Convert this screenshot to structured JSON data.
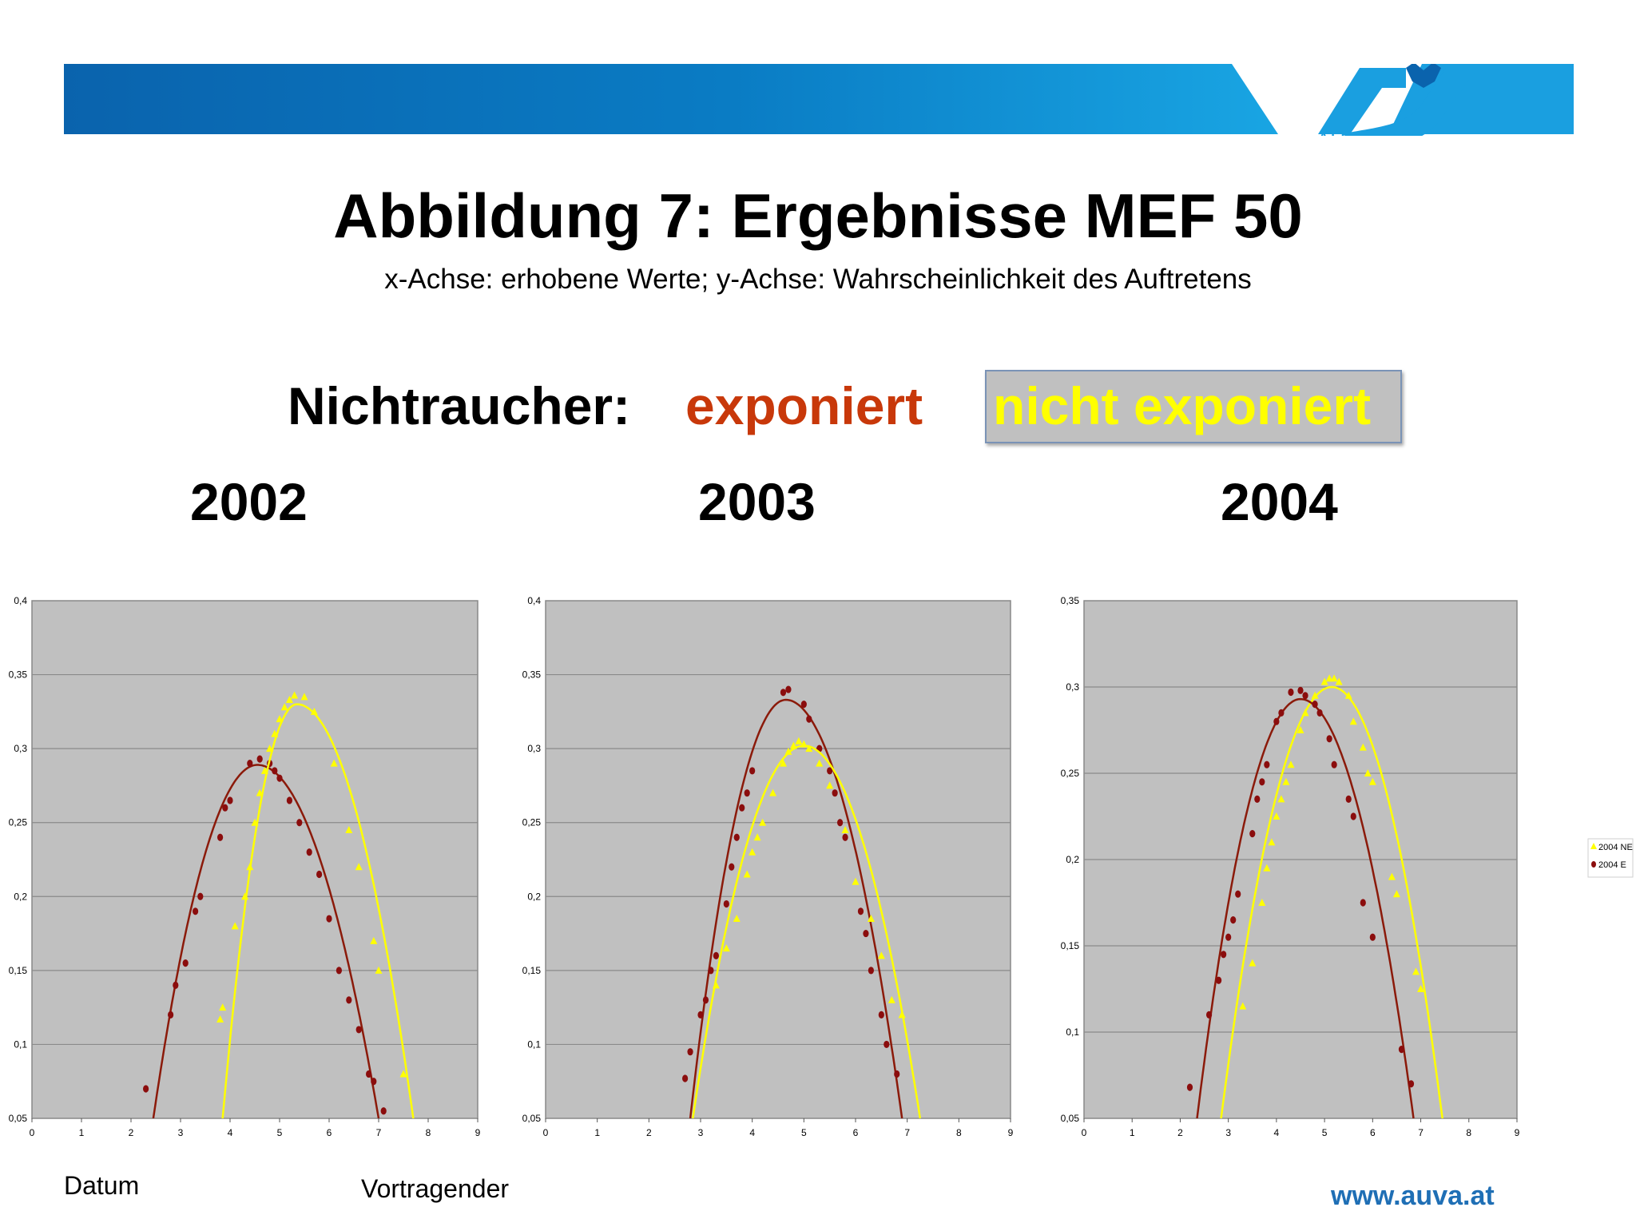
{
  "header": {
    "logo_text": "AUVA",
    "brand_color": "#0a72c0",
    "brand_color_light": "#1aa6e6"
  },
  "slide": {
    "title": "Abbildung 7: Ergebnisse MEF 50",
    "subtitle": "x-Achse: erhobene Werte; y-Achse: Wahrscheinlichkeit des Auftretens",
    "legend": {
      "label": "Nichtraucher:",
      "exposed": "exponiert",
      "not_exposed": "nicht exponiert",
      "exposed_color": "#c8380a",
      "not_exposed_color": "#ffff00"
    },
    "years": [
      "2002",
      "2003",
      "2004"
    ]
  },
  "footer": {
    "date": "Datum",
    "speaker": "Vortragender",
    "url": "www.auva.at"
  },
  "chart_data": [
    {
      "type": "scatter",
      "title": "",
      "xlim": [
        0,
        9
      ],
      "ylim": [
        0.05,
        0.4
      ],
      "x_ticks": [
        "0",
        "1",
        "2",
        "3",
        "4",
        "5",
        "6",
        "7",
        "8",
        "9"
      ],
      "y_ticks": [
        "0,05",
        "0,1",
        "0,15",
        "0,2",
        "0,25",
        "0,3",
        "0,35",
        "0,4"
      ],
      "grid": true,
      "background": "#c0c0c0",
      "series": [
        {
          "role": "exposed",
          "color": "#8b0d0d",
          "marker": "circle",
          "curve": {
            "peak_x": 4.55,
            "peak_y": 0.289,
            "x_start": 2.45,
            "x_end": 7.0
          },
          "points": [
            [
              2.3,
              0.07
            ],
            [
              2.8,
              0.12
            ],
            [
              2.9,
              0.14
            ],
            [
              3.1,
              0.155
            ],
            [
              3.3,
              0.19
            ],
            [
              3.4,
              0.2
            ],
            [
              3.8,
              0.24
            ],
            [
              3.9,
              0.26
            ],
            [
              4.0,
              0.265
            ],
            [
              4.4,
              0.29
            ],
            [
              4.6,
              0.293
            ],
            [
              4.8,
              0.29
            ],
            [
              4.9,
              0.285
            ],
            [
              5.0,
              0.28
            ],
            [
              5.2,
              0.265
            ],
            [
              5.4,
              0.25
            ],
            [
              5.6,
              0.23
            ],
            [
              5.8,
              0.215
            ],
            [
              6.0,
              0.185
            ],
            [
              6.2,
              0.15
            ],
            [
              6.4,
              0.13
            ],
            [
              6.6,
              0.11
            ],
            [
              6.8,
              0.08
            ],
            [
              6.9,
              0.075
            ],
            [
              7.1,
              0.055
            ]
          ]
        },
        {
          "role": "not_exposed",
          "color": "#ffff00",
          "marker": "triangle",
          "curve": {
            "peak_x": 5.35,
            "peak_y": 0.33,
            "x_start": 3.85,
            "x_end": 7.7
          },
          "points": [
            [
              3.8,
              0.117
            ],
            [
              3.85,
              0.125
            ],
            [
              4.1,
              0.18
            ],
            [
              4.3,
              0.2
            ],
            [
              4.4,
              0.22
            ],
            [
              4.5,
              0.25
            ],
            [
              4.6,
              0.27
            ],
            [
              4.7,
              0.285
            ],
            [
              4.8,
              0.3
            ],
            [
              4.9,
              0.31
            ],
            [
              5.0,
              0.32
            ],
            [
              5.1,
              0.328
            ],
            [
              5.2,
              0.333
            ],
            [
              5.3,
              0.336
            ],
            [
              5.5,
              0.335
            ],
            [
              5.7,
              0.325
            ],
            [
              6.1,
              0.29
            ],
            [
              6.4,
              0.245
            ],
            [
              6.6,
              0.22
            ],
            [
              6.9,
              0.17
            ],
            [
              7.0,
              0.15
            ],
            [
              7.5,
              0.08
            ]
          ]
        }
      ]
    },
    {
      "type": "scatter",
      "title": "",
      "xlim": [
        0,
        9
      ],
      "ylim": [
        0.05,
        0.4
      ],
      "x_ticks": [
        "0",
        "1",
        "2",
        "3",
        "4",
        "5",
        "6",
        "7",
        "8",
        "9"
      ],
      "y_ticks": [
        "0,05",
        "0,1",
        "0,15",
        "0,2",
        "0,25",
        "0,3",
        "0,35",
        "0,4"
      ],
      "grid": true,
      "background": "#c0c0c0",
      "series": [
        {
          "role": "exposed",
          "color": "#8b0d0d",
          "marker": "circle",
          "curve": {
            "peak_x": 4.65,
            "peak_y": 0.333,
            "x_start": 2.8,
            "x_end": 6.9
          },
          "points": [
            [
              2.7,
              0.077
            ],
            [
              2.8,
              0.095
            ],
            [
              3.0,
              0.12
            ],
            [
              3.1,
              0.13
            ],
            [
              3.2,
              0.15
            ],
            [
              3.3,
              0.16
            ],
            [
              3.5,
              0.195
            ],
            [
              3.6,
              0.22
            ],
            [
              3.7,
              0.24
            ],
            [
              3.8,
              0.26
            ],
            [
              3.9,
              0.27
            ],
            [
              4.0,
              0.285
            ],
            [
              4.6,
              0.338
            ],
            [
              4.7,
              0.34
            ],
            [
              5.0,
              0.33
            ],
            [
              5.1,
              0.32
            ],
            [
              5.3,
              0.3
            ],
            [
              5.5,
              0.285
            ],
            [
              5.6,
              0.27
            ],
            [
              5.7,
              0.25
            ],
            [
              5.8,
              0.24
            ],
            [
              6.1,
              0.19
            ],
            [
              6.2,
              0.175
            ],
            [
              6.3,
              0.15
            ],
            [
              6.5,
              0.12
            ],
            [
              6.6,
              0.1
            ],
            [
              6.8,
              0.08
            ]
          ]
        },
        {
          "role": "not_exposed",
          "color": "#ffff00",
          "marker": "triangle",
          "curve": {
            "peak_x": 5.0,
            "peak_y": 0.302,
            "x_start": 2.85,
            "x_end": 7.25
          },
          "points": [
            [
              3.3,
              0.14
            ],
            [
              3.5,
              0.165
            ],
            [
              3.7,
              0.185
            ],
            [
              3.9,
              0.215
            ],
            [
              4.0,
              0.23
            ],
            [
              4.1,
              0.24
            ],
            [
              4.2,
              0.25
            ],
            [
              4.4,
              0.27
            ],
            [
              4.6,
              0.29
            ],
            [
              4.7,
              0.298
            ],
            [
              4.8,
              0.302
            ],
            [
              4.9,
              0.305
            ],
            [
              5.0,
              0.303
            ],
            [
              5.1,
              0.3
            ],
            [
              5.3,
              0.29
            ],
            [
              5.5,
              0.275
            ],
            [
              5.8,
              0.245
            ],
            [
              6.0,
              0.21
            ],
            [
              6.3,
              0.185
            ],
            [
              6.5,
              0.16
            ],
            [
              6.7,
              0.13
            ],
            [
              6.9,
              0.12
            ]
          ]
        }
      ]
    },
    {
      "type": "scatter",
      "title": "",
      "xlim": [
        0,
        9
      ],
      "ylim": [
        0.05,
        0.35
      ],
      "x_ticks": [
        "0",
        "1",
        "2",
        "3",
        "4",
        "5",
        "6",
        "7",
        "8",
        "9"
      ],
      "y_ticks": [
        "0,05",
        "0,1",
        "0,15",
        "0,2",
        "0,25",
        "0,3",
        "0,35"
      ],
      "grid": true,
      "background": "#c0c0c0",
      "legend_position": "right",
      "series": [
        {
          "name": "2004 NE",
          "role": "not_exposed",
          "color": "#ffff00",
          "marker": "triangle",
          "curve": {
            "peak_x": 5.15,
            "peak_y": 0.3,
            "x_start": 2.85,
            "x_end": 7.45
          },
          "points": [
            [
              3.3,
              0.115
            ],
            [
              3.5,
              0.14
            ],
            [
              3.7,
              0.175
            ],
            [
              3.8,
              0.195
            ],
            [
              3.9,
              0.21
            ],
            [
              4.0,
              0.225
            ],
            [
              4.1,
              0.235
            ],
            [
              4.2,
              0.245
            ],
            [
              4.3,
              0.255
            ],
            [
              4.5,
              0.275
            ],
            [
              4.6,
              0.285
            ],
            [
              4.8,
              0.295
            ],
            [
              5.0,
              0.303
            ],
            [
              5.1,
              0.305
            ],
            [
              5.2,
              0.305
            ],
            [
              5.3,
              0.303
            ],
            [
              5.5,
              0.295
            ],
            [
              5.6,
              0.28
            ],
            [
              5.8,
              0.265
            ],
            [
              5.9,
              0.25
            ],
            [
              6.0,
              0.245
            ],
            [
              6.4,
              0.19
            ],
            [
              6.5,
              0.18
            ],
            [
              6.9,
              0.135
            ],
            [
              7.0,
              0.125
            ]
          ]
        },
        {
          "name": "2004 E",
          "role": "exposed",
          "color": "#8b0d0d",
          "marker": "circle",
          "curve": {
            "peak_x": 4.5,
            "peak_y": 0.293,
            "x_start": 2.35,
            "x_end": 6.85
          },
          "points": [
            [
              2.2,
              0.068
            ],
            [
              2.6,
              0.11
            ],
            [
              2.8,
              0.13
            ],
            [
              2.9,
              0.145
            ],
            [
              3.0,
              0.155
            ],
            [
              3.1,
              0.165
            ],
            [
              3.2,
              0.18
            ],
            [
              3.5,
              0.215
            ],
            [
              3.6,
              0.235
            ],
            [
              3.7,
              0.245
            ],
            [
              3.8,
              0.255
            ],
            [
              4.0,
              0.28
            ],
            [
              4.1,
              0.285
            ],
            [
              4.3,
              0.297
            ],
            [
              4.5,
              0.298
            ],
            [
              4.6,
              0.295
            ],
            [
              4.8,
              0.29
            ],
            [
              4.9,
              0.285
            ],
            [
              5.1,
              0.27
            ],
            [
              5.2,
              0.255
            ],
            [
              5.5,
              0.235
            ],
            [
              5.6,
              0.225
            ],
            [
              5.8,
              0.175
            ],
            [
              6.0,
              0.155
            ],
            [
              6.6,
              0.09
            ],
            [
              6.8,
              0.07
            ]
          ]
        }
      ]
    }
  ]
}
